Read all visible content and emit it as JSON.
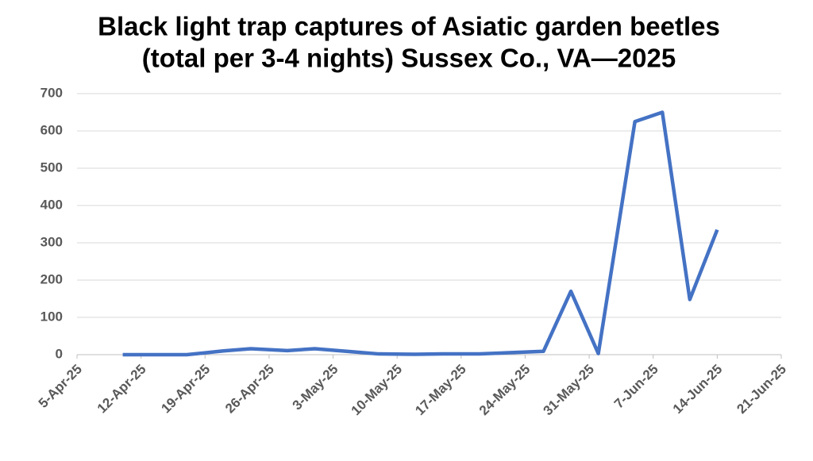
{
  "chart_data": {
    "type": "line",
    "title": [
      "Black light trap captures of Asiatic garden beetles",
      "(total per 3-4 nights) Sussex Co., VA—2025"
    ],
    "x": [
      "2025-04-10",
      "2025-04-14",
      "2025-04-17",
      "2025-04-21",
      "2025-04-24",
      "2025-04-28",
      "2025-05-01",
      "2025-05-05",
      "2025-05-08",
      "2025-05-12",
      "2025-05-15",
      "2025-05-19",
      "2025-05-22",
      "2025-05-26",
      "2025-05-29",
      "2025-06-01",
      "2025-06-05",
      "2025-06-08",
      "2025-06-11",
      "2025-06-14"
    ],
    "values": [
      0,
      0,
      0,
      10,
      16,
      11,
      16,
      8,
      2,
      1,
      2,
      2,
      5,
      9,
      170,
      3,
      625,
      650,
      148,
      335
    ],
    "color": "#4472c4",
    "xlim": [
      "2025-04-05",
      "2025-06-21"
    ],
    "xticks": [
      {
        "value": "2025-04-05",
        "label": "5-Apr-25"
      },
      {
        "value": "2025-04-12",
        "label": "12-Apr-25"
      },
      {
        "value": "2025-04-19",
        "label": "19-Apr-25"
      },
      {
        "value": "2025-04-26",
        "label": "26-Apr-25"
      },
      {
        "value": "2025-05-03",
        "label": "3-May-25"
      },
      {
        "value": "2025-05-10",
        "label": "10-May-25"
      },
      {
        "value": "2025-05-17",
        "label": "17-May-25"
      },
      {
        "value": "2025-05-24",
        "label": "24-May-25"
      },
      {
        "value": "2025-05-31",
        "label": "31-May-25"
      },
      {
        "value": "2025-06-07",
        "label": "7-Jun-25"
      },
      {
        "value": "2025-06-14",
        "label": "14-Jun-25"
      },
      {
        "value": "2025-06-21",
        "label": "21-Jun-25"
      }
    ],
    "ylim": [
      0,
      700
    ],
    "yticks": [
      0,
      100,
      200,
      300,
      400,
      500,
      600,
      700
    ],
    "grid": true
  }
}
